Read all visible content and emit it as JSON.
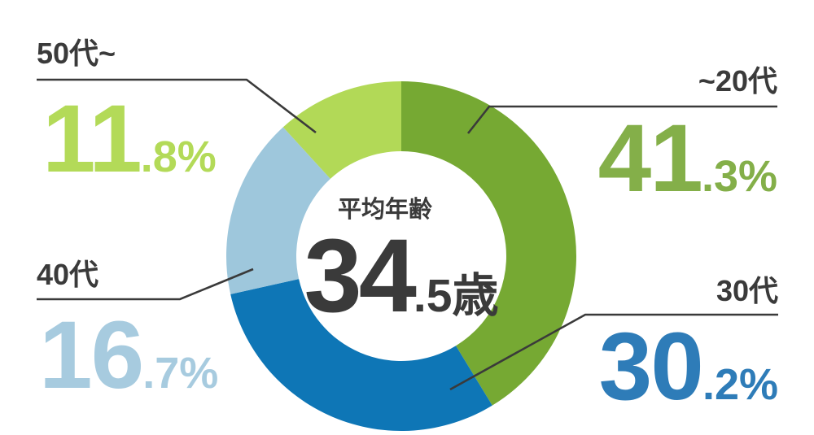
{
  "background": "#ffffff",
  "chart_data": {
    "type": "pie",
    "variant": "donut",
    "direction": "clockwise",
    "start_angle": "top",
    "legend_position": "callouts",
    "center": {
      "label": "平均年齢",
      "value_main": "34",
      "value_sub": ".5歳",
      "value": 34.5,
      "unit": "歳",
      "color": "#3a3a3a"
    },
    "segments": [
      {
        "label": "~20代",
        "value": 41.3,
        "value_main": "41",
        "value_sub": ".3%",
        "color": "#76a933",
        "text_color": "#84af49"
      },
      {
        "label": "30代",
        "value": 30.2,
        "value_main": "30",
        "value_sub": ".2%",
        "color": "#0e76b6",
        "text_color": "#2e7cb8"
      },
      {
        "label": "40代",
        "value": 16.7,
        "value_main": "16",
        "value_sub": ".7%",
        "color": "#9ec7dc",
        "text_color": "#a7cbdf"
      },
      {
        "label": "50代~",
        "value": 11.8,
        "value_main": "11",
        "value_sub": ".8%",
        "color": "#b2d957",
        "text_color": "#b3da58"
      }
    ],
    "label_color": "#3a3a3a",
    "leader_line_color": "#3a3a3a"
  }
}
